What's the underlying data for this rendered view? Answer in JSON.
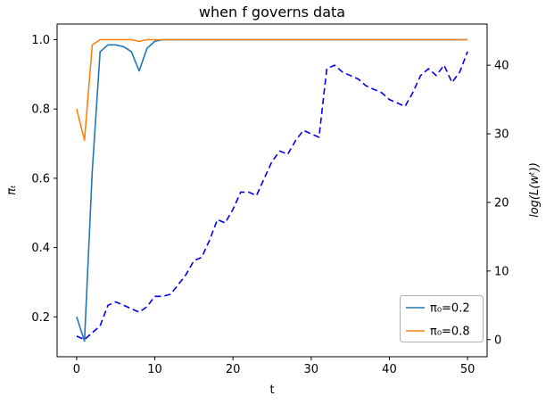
{
  "figure": {
    "background": "#ffffff"
  },
  "chart_data": {
    "type": "line",
    "title": "when f governs data",
    "xlabel": "t",
    "ylabel_left": "πₜ",
    "ylabel_right": "log(L(wᵗ))",
    "xlim": [
      -2.5,
      52.5
    ],
    "ylim_left": [
      0.085,
      1.045
    ],
    "ylim_right": [
      -2.5,
      46
    ],
    "xticks": [
      0,
      10,
      20,
      30,
      40,
      50
    ],
    "xtick_labels": [
      "0",
      "10",
      "20",
      "30",
      "40",
      "50"
    ],
    "yticks_left": [
      0.2,
      0.4,
      0.6,
      0.8,
      1.0
    ],
    "ytick_labels_left": [
      "0.2",
      "0.4",
      "0.6",
      "0.8",
      "1.0"
    ],
    "yticks_right": [
      0,
      10,
      20,
      30,
      40
    ],
    "ytick_labels_right": [
      "0",
      "10",
      "20",
      "30",
      "40"
    ],
    "grid": false,
    "legend_position": "lower right",
    "x": [
      0,
      1,
      2,
      3,
      4,
      5,
      6,
      7,
      8,
      9,
      10,
      11,
      12,
      13,
      14,
      15,
      16,
      17,
      18,
      19,
      20,
      21,
      22,
      23,
      24,
      25,
      26,
      27,
      28,
      29,
      30,
      31,
      32,
      33,
      34,
      35,
      36,
      37,
      38,
      39,
      40,
      41,
      42,
      43,
      44,
      45,
      46,
      47,
      48,
      49,
      50
    ],
    "series": [
      {
        "name": "π₀=0.2",
        "axis": "left",
        "color": "#1f77b4",
        "dash": "solid",
        "in_legend": true,
        "values": [
          0.2,
          0.13,
          0.62,
          0.965,
          0.985,
          0.985,
          0.98,
          0.965,
          0.91,
          0.975,
          0.995,
          1.0,
          1.0,
          1.0,
          1.0,
          1.0,
          1.0,
          1.0,
          1.0,
          1.0,
          1.0,
          1.0,
          1.0,
          1.0,
          1.0,
          1.0,
          1.0,
          1.0,
          1.0,
          1.0,
          1.0,
          1.0,
          1.0,
          1.0,
          1.0,
          1.0,
          1.0,
          1.0,
          1.0,
          1.0,
          1.0,
          1.0,
          1.0,
          1.0,
          1.0,
          1.0,
          1.0,
          1.0,
          1.0,
          1.0,
          1.0
        ]
      },
      {
        "name": "π₀=0.8",
        "axis": "left",
        "color": "#ff7f0e",
        "dash": "solid",
        "in_legend": true,
        "values": [
          0.8,
          0.71,
          0.985,
          1.0,
          1.0,
          1.0,
          1.0,
          1.0,
          0.995,
          1.0,
          1.0,
          1.0,
          1.0,
          1.0,
          1.0,
          1.0,
          1.0,
          1.0,
          1.0,
          1.0,
          1.0,
          1.0,
          1.0,
          1.0,
          1.0,
          1.0,
          1.0,
          1.0,
          1.0,
          1.0,
          1.0,
          1.0,
          1.0,
          1.0,
          1.0,
          1.0,
          1.0,
          1.0,
          1.0,
          1.0,
          1.0,
          1.0,
          1.0,
          1.0,
          1.0,
          1.0,
          1.0,
          1.0,
          1.0,
          1.0,
          1.0
        ]
      },
      {
        "name": "log(L(wᵗ))",
        "axis": "right",
        "color": "#0000ee",
        "dash": "dashed",
        "in_legend": false,
        "values": [
          0.5,
          0.0,
          1.0,
          2.0,
          5.0,
          5.5,
          5.0,
          4.5,
          4.0,
          4.8,
          6.3,
          6.3,
          6.6,
          8.0,
          9.5,
          11.5,
          12.0,
          14.5,
          17.5,
          17.0,
          19.0,
          21.5,
          21.5,
          21.0,
          23.5,
          26.0,
          27.5,
          27.0,
          29.0,
          30.5,
          30.0,
          29.5,
          39.5,
          40.0,
          39.0,
          38.5,
          38.0,
          37.0,
          36.5,
          36.0,
          35.0,
          34.5,
          34.0,
          36.0,
          38.5,
          39.5,
          38.5,
          40.0,
          37.5,
          39.0,
          42.0
        ]
      }
    ]
  }
}
